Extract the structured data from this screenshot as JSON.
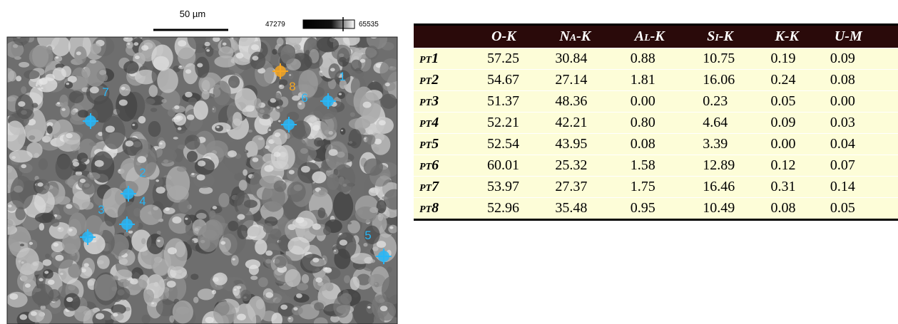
{
  "figure": {
    "scale_bar": "50 µm",
    "intensity_min": "47279",
    "intensity_max": "65535",
    "markers": [
      "7",
      "1",
      "6",
      "8",
      "2",
      "4",
      "3",
      "5"
    ]
  },
  "table": {
    "columns": [
      "O-K",
      "Na-K",
      "Al-K",
      "Si-K",
      "K-K",
      "U-M"
    ],
    "rows": [
      {
        "label": "pt1",
        "values": [
          "57.25",
          "30.84",
          "0.88",
          "10.75",
          "0.19",
          "0.09"
        ]
      },
      {
        "label": "pt2",
        "values": [
          "54.67",
          "27.14",
          "1.81",
          "16.06",
          "0.24",
          "0.08"
        ]
      },
      {
        "label": "pt3",
        "values": [
          "51.37",
          "48.36",
          "0.00",
          "0.23",
          "0.05",
          "0.00"
        ]
      },
      {
        "label": "pt4",
        "values": [
          "52.21",
          "42.21",
          "0.80",
          "4.64",
          "0.09",
          "0.03"
        ]
      },
      {
        "label": "pt5",
        "values": [
          "52.54",
          "43.95",
          "0.08",
          "3.39",
          "0.00",
          "0.04"
        ]
      },
      {
        "label": "pt6",
        "values": [
          "60.01",
          "25.32",
          "1.58",
          "12.89",
          "0.12",
          "0.07"
        ]
      },
      {
        "label": "pt7",
        "values": [
          "53.97",
          "27.37",
          "1.75",
          "16.46",
          "0.31",
          "0.14"
        ]
      },
      {
        "label": "pt8",
        "values": [
          "52.96",
          "35.48",
          "0.95",
          "10.49",
          "0.08",
          "0.05"
        ]
      }
    ]
  }
}
